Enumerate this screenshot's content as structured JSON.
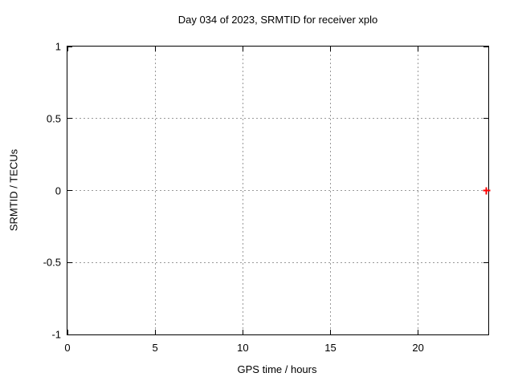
{
  "chart_data": {
    "type": "scatter",
    "title": "Day 034 of 2023, SRMTID for receiver xplo",
    "xlabel": "GPS time / hours",
    "ylabel": "SRMTID / TECUs",
    "xlim": [
      0,
      24
    ],
    "ylim": [
      -1,
      1
    ],
    "xticks": [
      {
        "value": 0,
        "label": "0"
      },
      {
        "value": 5,
        "label": "5"
      },
      {
        "value": 10,
        "label": "10"
      },
      {
        "value": 15,
        "label": "15"
      },
      {
        "value": 20,
        "label": "20"
      }
    ],
    "yticks": [
      {
        "value": -1,
        "label": "-1"
      },
      {
        "value": -0.5,
        "label": "-0.5"
      },
      {
        "value": 0,
        "label": "0"
      },
      {
        "value": 0.5,
        "label": "0.5"
      },
      {
        "value": 1,
        "label": "1"
      }
    ],
    "grid": true,
    "grid_style": "dotted",
    "legend": "none",
    "series": [
      {
        "marker": "plus",
        "color": "#ff0000",
        "points": [
          {
            "x": 23.9,
            "y": 0.0
          }
        ]
      }
    ]
  },
  "style": {
    "background": "#ffffff",
    "text_color": "#000000",
    "border_color": "#000000",
    "grid_color": "#999999"
  }
}
